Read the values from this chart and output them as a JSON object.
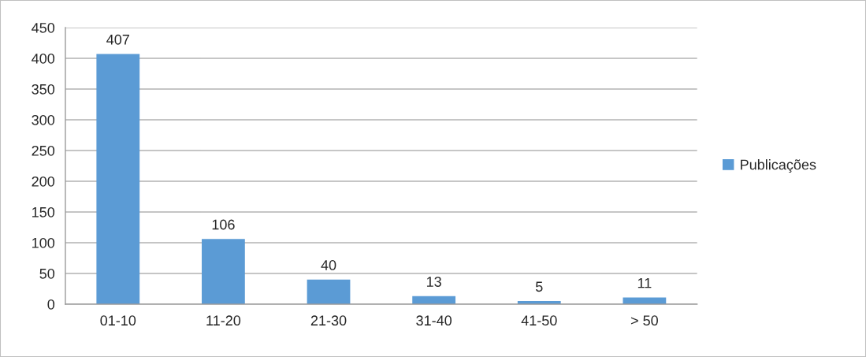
{
  "chart_data": {
    "type": "bar",
    "categories": [
      "01-10",
      "11-20",
      "21-30",
      "31-40",
      "41-50",
      "> 50"
    ],
    "series": [
      {
        "name": "Publicações",
        "color": "#5b9bd5",
        "values": [
          407,
          106,
          40,
          13,
          5,
          11
        ]
      }
    ],
    "ylim": [
      0,
      450
    ],
    "yticks": [
      0,
      50,
      100,
      150,
      200,
      250,
      300,
      350,
      400,
      450
    ],
    "grid": "y",
    "legend": "right",
    "data_labels": true
  }
}
